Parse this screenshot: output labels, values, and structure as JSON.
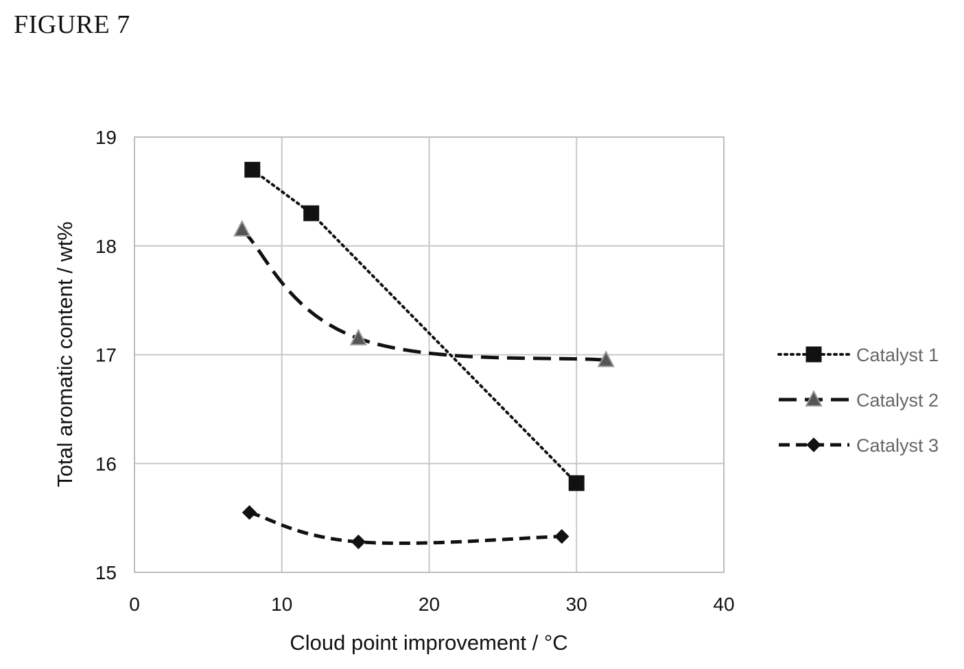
{
  "figure": {
    "label": "FIGURE 7"
  },
  "chart_data": {
    "type": "line",
    "title": "",
    "xlabel": "Cloud point improvement / °C",
    "ylabel": "Total aromatic content / wt%",
    "xlim": [
      0,
      40
    ],
    "ylim": [
      15,
      19
    ],
    "xticks": [
      0,
      10,
      20,
      30,
      40
    ],
    "yticks": [
      15,
      16,
      17,
      18,
      19
    ],
    "grid": true,
    "legend_position": "right",
    "series": [
      {
        "name": "Catalyst 1",
        "marker": "square",
        "line_style": "dotted",
        "color": "#111111",
        "x": [
          8,
          12,
          30
        ],
        "y": [
          18.7,
          18.3,
          15.82
        ]
      },
      {
        "name": "Catalyst 2",
        "marker": "triangle",
        "line_style": "long-dash",
        "color": "#111111",
        "x": [
          7.3,
          15.2,
          32
        ],
        "y": [
          18.15,
          17.15,
          16.95
        ]
      },
      {
        "name": "Catalyst 3",
        "marker": "diamond",
        "line_style": "dash",
        "color": "#111111",
        "x": [
          7.8,
          15.2,
          29
        ],
        "y": [
          15.55,
          15.28,
          15.33
        ]
      }
    ]
  }
}
